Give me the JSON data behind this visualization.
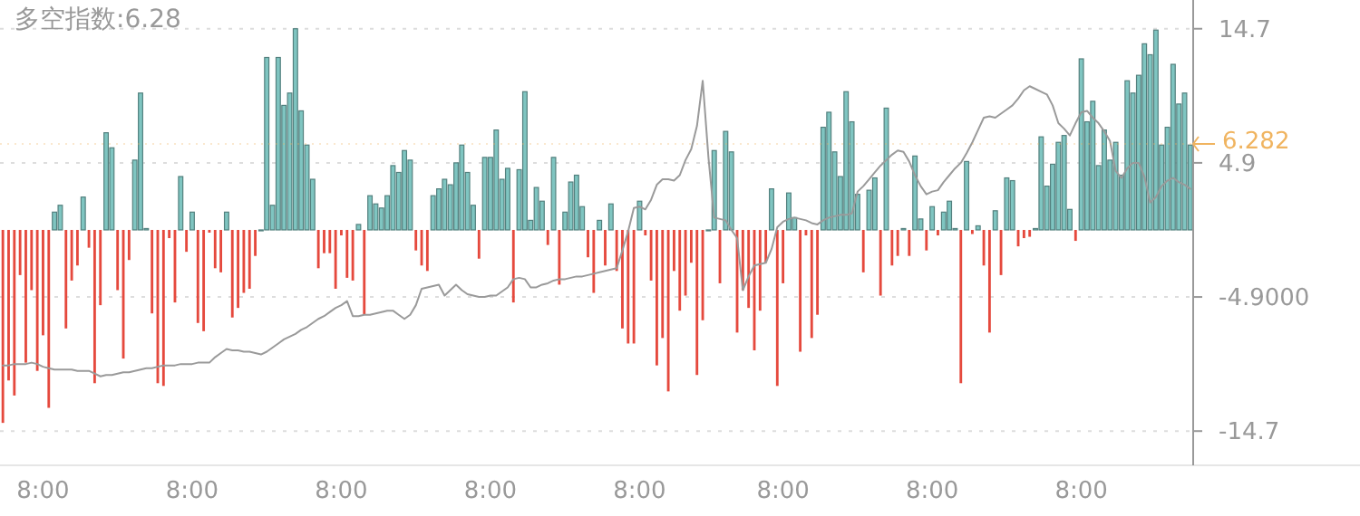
{
  "chart_data": {
    "type": "bar",
    "title": "多空指数:6.28",
    "categories": [
      null,
      null,
      null,
      null,
      null,
      null,
      null,
      "8:00",
      null,
      null,
      null,
      null,
      null,
      null,
      null,
      null,
      null,
      null,
      null,
      null,
      null,
      null,
      null,
      null,
      null,
      null,
      null,
      null,
      null,
      null,
      null,
      null,
      null,
      "8:00",
      null,
      null,
      null,
      null,
      null,
      null,
      null,
      null,
      null,
      null,
      null,
      null,
      null,
      null,
      null,
      null,
      null,
      null,
      null,
      null,
      null,
      null,
      null,
      null,
      null,
      "8:00",
      null,
      null,
      null,
      null,
      null,
      null,
      null,
      null,
      null,
      null,
      null,
      null,
      null,
      null,
      null,
      null,
      null,
      null,
      null,
      null,
      null,
      null,
      null,
      null,
      null,
      "8:00",
      null,
      null,
      null,
      null,
      null,
      null,
      null,
      null,
      null,
      null,
      null,
      null,
      null,
      null,
      null,
      null,
      null,
      null,
      null,
      null,
      null,
      null,
      null,
      null,
      null,
      "8:00",
      null,
      null,
      null,
      null,
      null,
      null,
      null,
      null,
      null,
      null,
      null,
      null,
      null,
      null,
      null,
      null,
      null,
      null,
      null,
      null,
      null,
      null,
      null,
      null,
      "8:00",
      null,
      null,
      null,
      null,
      null,
      null,
      null,
      null,
      null,
      null,
      null,
      null,
      null,
      null,
      null,
      null,
      null,
      null,
      null,
      null,
      null,
      null,
      null,
      null,
      null,
      "8:00",
      null,
      null,
      null,
      null,
      null,
      null,
      null,
      null,
      null,
      null,
      null,
      null,
      null,
      null,
      null,
      null,
      null,
      null,
      null,
      null,
      null,
      null,
      null,
      null,
      null,
      "8:00",
      null,
      null,
      null,
      null,
      null,
      null,
      null,
      null,
      null,
      null,
      null,
      null,
      null,
      null,
      null,
      null,
      null,
      null,
      null
    ],
    "ylim": [
      -17.2,
      16.8
    ],
    "yticks": [
      14.7,
      4.9,
      {
        "value": -4.9,
        "label": "-4.9000"
      },
      -14.7
    ],
    "grid": "y",
    "series": [
      {
        "values": [
          -14.1,
          -11.0,
          -12.1,
          -3.3,
          -9.7,
          -4.4,
          -10.3,
          -7.7,
          -13.0,
          1.3,
          1.8,
          -7.2,
          -3.7,
          -2.6,
          2.4,
          -1.3,
          -11.2,
          -5.5,
          7.1,
          6.0,
          -4.4,
          -9.4,
          -2.2,
          5.1,
          10.0,
          0.1,
          -6.1,
          -11.2,
          -11.4,
          -0.6,
          -5.3,
          3.9,
          -1.6,
          1.3,
          -6.8,
          -7.4,
          -0.2,
          -2.8,
          -3.1,
          1.3,
          -6.4,
          -5.7,
          -4.6,
          -4.3,
          -1.9,
          0,
          12.6,
          1.8,
          12.6,
          9.1,
          10.0,
          14.7,
          8.7,
          6.2,
          3.7,
          -2.8,
          -1.7,
          -1.7,
          -4.3,
          -0.4,
          -3.5,
          -3.7,
          0.4,
          -6.2,
          2.5,
          1.9,
          1.6,
          2.5,
          4.7,
          4.2,
          5.8,
          5.1,
          -1.5,
          -2.6,
          -3.0,
          2.5,
          3.0,
          3.7,
          3.3,
          4.9,
          6.2,
          4.2,
          1.8,
          -2.1,
          5.3,
          5.3,
          7.3,
          3.7,
          4.5,
          -5.3,
          4.4,
          10.1,
          0.7,
          3.1,
          2.1,
          -1.1,
          5.3,
          -4.0,
          1.3,
          3.5,
          4.0,
          1.7,
          -2.0,
          -4.6,
          0.7,
          -2.6,
          1.9,
          -3.0,
          -7.2,
          -8.3,
          -8.3,
          2.1,
          -0.4,
          -3.7,
          -9.9,
          -7.9,
          -11.8,
          -3.0,
          -5.9,
          -4.8,
          -2.4,
          -10.6,
          -6.6,
          0,
          5.8,
          -3.9,
          7.2,
          5.7,
          -7.5,
          -4.4,
          -5.7,
          -8.8,
          -5.9,
          -2.4,
          3.0,
          -11.4,
          -3.9,
          2.7,
          0.9,
          -8.9,
          -0.4,
          -7.9,
          -6.2,
          7.5,
          8.6,
          5.7,
          3.9,
          10.1,
          7.9,
          2.6,
          -3.1,
          2.9,
          3.8,
          -4.8,
          8.9,
          -2.6,
          -1.9,
          0.1,
          -1.9,
          5.4,
          0.8,
          -1.5,
          1.7,
          -0.4,
          1.3,
          2.1,
          0.1,
          -11.2,
          5.0,
          -0.3,
          0.3,
          -2.6,
          -7.5,
          1.4,
          -3.3,
          3.8,
          3.6,
          -1.2,
          -0.6,
          -0.5,
          0.1,
          6.8,
          3.2,
          4.8,
          6.4,
          6.9,
          1.5,
          -0.8,
          12.5,
          7.9,
          9.4,
          4.7,
          7.3,
          5.1,
          6.4,
          4.0,
          10.9,
          10.0,
          11.3,
          13.6,
          12.8,
          14.6,
          6.2,
          7.5,
          12.1,
          9.2,
          10.0,
          6.2
        ],
        "colors": [
          "#e5493d",
          "#e5493d",
          "#e5493d",
          "#e5493d",
          "#e5493d",
          "#e5493d",
          "#e5493d",
          "#e5493d",
          "#e5493d",
          "#7fc5c1",
          "#7fc5c1",
          "#e5493d",
          "#e5493d",
          "#e5493d",
          "#7fc5c1",
          "#e5493d",
          "#e5493d",
          "#e5493d",
          "#7fc5c1",
          "#7fc5c1",
          "#e5493d",
          "#e5493d",
          "#e5493d",
          "#7fc5c1",
          "#7fc5c1",
          "#7fc5c1",
          "#e5493d",
          "#e5493d",
          "#e5493d",
          "#e5493d",
          "#e5493d",
          "#7fc5c1",
          "#e5493d",
          "#7fc5c1",
          "#e5493d",
          "#e5493d",
          "#e5493d",
          "#e5493d",
          "#e5493d",
          "#7fc5c1",
          "#e5493d",
          "#e5493d",
          "#e5493d",
          "#e5493d",
          "#e5493d",
          "#7fc5c1",
          "#7fc5c1",
          "#7fc5c1",
          "#7fc5c1",
          "#7fc5c1",
          "#7fc5c1",
          "#7fc5c1",
          "#7fc5c1",
          "#7fc5c1",
          "#7fc5c1",
          "#e5493d",
          "#e5493d",
          "#e5493d",
          "#e5493d",
          "#e5493d",
          "#e5493d",
          "#e5493d",
          "#7fc5c1",
          "#e5493d",
          "#7fc5c1",
          "#7fc5c1",
          "#7fc5c1",
          "#7fc5c1",
          "#7fc5c1",
          "#7fc5c1",
          "#7fc5c1",
          "#7fc5c1",
          "#e5493d",
          "#e5493d",
          "#e5493d",
          "#7fc5c1",
          "#7fc5c1",
          "#7fc5c1",
          "#7fc5c1",
          "#7fc5c1",
          "#7fc5c1",
          "#7fc5c1",
          "#7fc5c1",
          "#e5493d",
          "#7fc5c1",
          "#7fc5c1",
          "#7fc5c1",
          "#7fc5c1",
          "#7fc5c1",
          "#e5493d",
          "#7fc5c1",
          "#7fc5c1",
          "#7fc5c1",
          "#7fc5c1",
          "#7fc5c1",
          "#e5493d",
          "#7fc5c1",
          "#e5493d",
          "#7fc5c1",
          "#7fc5c1",
          "#7fc5c1",
          "#7fc5c1",
          "#e5493d",
          "#e5493d",
          "#7fc5c1",
          "#e5493d",
          "#7fc5c1",
          "#e5493d",
          "#e5493d",
          "#e5493d",
          "#e5493d",
          "#7fc5c1",
          "#e5493d",
          "#e5493d",
          "#e5493d",
          "#e5493d",
          "#e5493d",
          "#e5493d",
          "#e5493d",
          "#e5493d",
          "#e5493d",
          "#e5493d",
          "#e5493d",
          "#7fc5c1",
          "#7fc5c1",
          "#e5493d",
          "#7fc5c1",
          "#7fc5c1",
          "#e5493d",
          "#e5493d",
          "#e5493d",
          "#e5493d",
          "#e5493d",
          "#e5493d",
          "#7fc5c1",
          "#e5493d",
          "#e5493d",
          "#7fc5c1",
          "#7fc5c1",
          "#e5493d",
          "#e5493d",
          "#e5493d",
          "#e5493d",
          "#7fc5c1",
          "#7fc5c1",
          "#7fc5c1",
          "#7fc5c1",
          "#7fc5c1",
          "#7fc5c1",
          "#7fc5c1",
          "#e5493d",
          "#7fc5c1",
          "#7fc5c1",
          "#e5493d",
          "#7fc5c1",
          "#e5493d",
          "#e5493d",
          "#7fc5c1",
          "#e5493d",
          "#7fc5c1",
          "#7fc5c1",
          "#e5493d",
          "#7fc5c1",
          "#e5493d",
          "#7fc5c1",
          "#7fc5c1",
          "#7fc5c1",
          "#e5493d",
          "#7fc5c1",
          "#e5493d",
          "#7fc5c1",
          "#e5493d",
          "#e5493d",
          "#7fc5c1",
          "#e5493d",
          "#7fc5c1",
          "#7fc5c1",
          "#e5493d",
          "#e5493d",
          "#e5493d",
          "#7fc5c1",
          "#7fc5c1",
          "#7fc5c1",
          "#7fc5c1",
          "#7fc5c1",
          "#7fc5c1",
          "#7fc5c1",
          "#e5493d",
          "#7fc5c1",
          "#7fc5c1",
          "#7fc5c1",
          "#7fc5c1",
          "#7fc5c1",
          "#7fc5c1",
          "#7fc5c1",
          "#7fc5c1",
          "#7fc5c1",
          "#7fc5c1",
          "#7fc5c1",
          "#7fc5c1",
          "#7fc5c1",
          "#7fc5c1",
          "#7fc5c1",
          "#7fc5c1",
          "#7fc5c1",
          "#7fc5c1",
          "#7fc5c1",
          "#7fc5c1"
        ]
      },
      {
        "type": "line",
        "color": "#9a9a9a",
        "values": [
          -9.9,
          -9.9,
          -9.8,
          -9.8,
          -9.8,
          -9.7,
          -9.8,
          -10.0,
          -10.1,
          -10.2,
          -10.2,
          -10.2,
          -10.2,
          -10.3,
          -10.3,
          -10.3,
          -10.5,
          -10.7,
          -10.6,
          -10.6,
          -10.5,
          -10.4,
          -10.4,
          -10.3,
          -10.2,
          -10.1,
          -10.1,
          -10.0,
          -9.9,
          -9.9,
          -9.9,
          -9.8,
          -9.8,
          -9.8,
          -9.7,
          -9.7,
          -9.7,
          -9.3,
          -9.0,
          -8.7,
          -8.8,
          -8.8,
          -8.9,
          -8.9,
          -9.0,
          -9.1,
          -8.9,
          -8.6,
          -8.3,
          -8.0,
          -7.8,
          -7.6,
          -7.3,
          -7.1,
          -6.8,
          -6.5,
          -6.3,
          -6.0,
          -5.7,
          -5.5,
          -5.2,
          -6.3,
          -6.3,
          -6.2,
          -6.2,
          -6.1,
          -6.0,
          -5.9,
          -5.9,
          -6.2,
          -6.5,
          -6.2,
          -5.5,
          -4.3,
          -4.2,
          -4.1,
          -4.0,
          -4.8,
          -4.4,
          -4.0,
          -4.4,
          -4.7,
          -4.8,
          -4.9,
          -4.9,
          -4.8,
          -4.8,
          -4.5,
          -4.2,
          -3.6,
          -3.5,
          -3.6,
          -4.2,
          -4.2,
          -4.0,
          -3.9,
          -3.7,
          -3.6,
          -3.6,
          -3.5,
          -3.4,
          -3.4,
          -3.3,
          -3.2,
          -3.1,
          -3.0,
          -2.9,
          -2.8,
          -1.5,
          -0.1,
          1.6,
          1.7,
          1.5,
          2.2,
          3.3,
          3.7,
          3.7,
          3.6,
          4.0,
          5.1,
          5.9,
          7.6,
          10.9,
          5.3,
          0.9,
          0.8,
          0.7,
          0.0,
          -0.6,
          -4.4,
          -3.4,
          -2.6,
          -2.5,
          -2.4,
          -1.4,
          0.2,
          0.6,
          0.8,
          0.9,
          0.8,
          0.7,
          0.5,
          0.4,
          0.7,
          0.9,
          1.0,
          1.1,
          1.1,
          1.2,
          2.8,
          3.2,
          3.7,
          4.2,
          4.7,
          5.1,
          5.5,
          5.8,
          5.7,
          5.0,
          4.0,
          3.2,
          2.6,
          2.8,
          2.9,
          3.5,
          4.0,
          4.5,
          4.9,
          5.6,
          6.4,
          7.3,
          8.2,
          8.3,
          8.2,
          8.5,
          8.8,
          9.1,
          9.6,
          10.2,
          10.5,
          10.3,
          10.1,
          9.9,
          9.1,
          7.8,
          7.4,
          6.9,
          7.8,
          8.6,
          8.7,
          8.2,
          7.8,
          7.2,
          6.5,
          4.3,
          3.8,
          4.5,
          4.9,
          4.9,
          3.9,
          2.0,
          2.4,
          3.2,
          3.6,
          3.8,
          3.5,
          3.3,
          3.0
        ]
      }
    ],
    "ref_lines": [
      {
        "axis": "y",
        "value": 6.282,
        "label": "6.282",
        "color": "#f0b460"
      }
    ]
  }
}
